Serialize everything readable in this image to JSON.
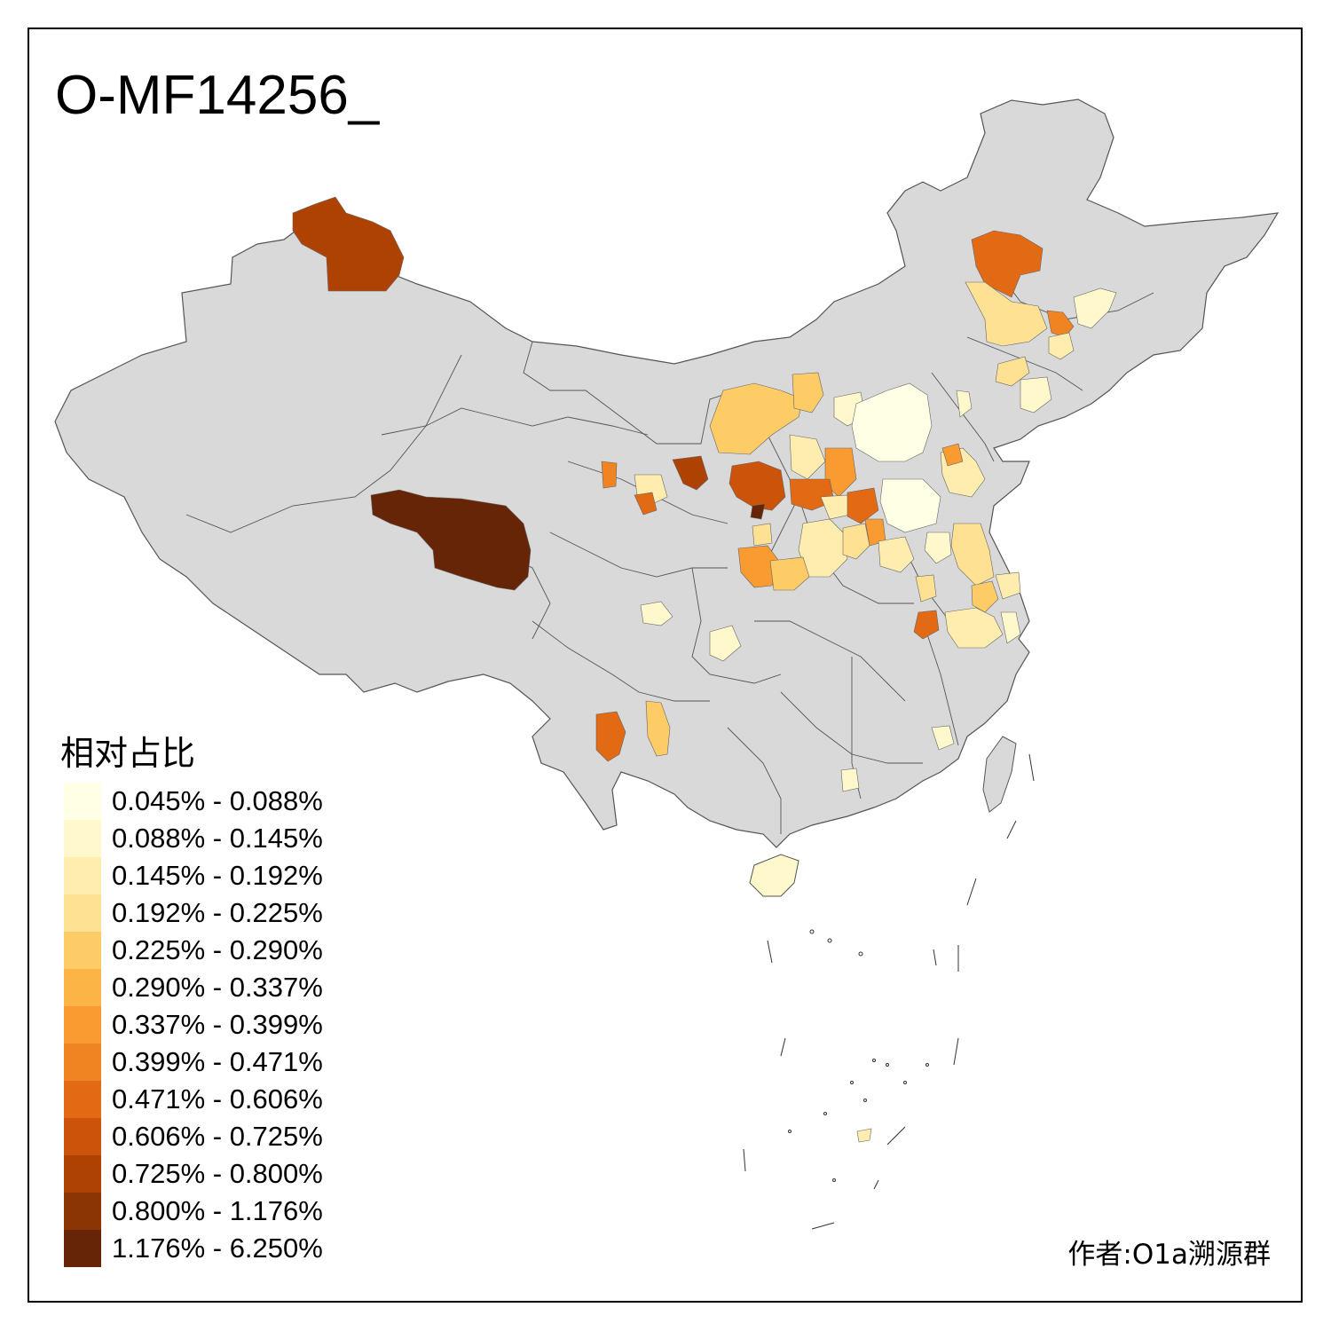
{
  "title": "O-MF14256_",
  "legend": {
    "title": "相对占比",
    "items": [
      {
        "label": "0.045% - 0.088%",
        "color": "#FFFFE5"
      },
      {
        "label": "0.088% - 0.145%",
        "color": "#FFF8CC"
      },
      {
        "label": "0.145% - 0.192%",
        "color": "#FEEDAE"
      },
      {
        "label": "0.192% - 0.225%",
        "color": "#FEE192"
      },
      {
        "label": "0.225% - 0.290%",
        "color": "#FECC66"
      },
      {
        "label": "0.290% - 0.337%",
        "color": "#FDB446"
      },
      {
        "label": "0.337% - 0.399%",
        "color": "#F99B30"
      },
      {
        "label": "0.399% - 0.471%",
        "color": "#F08322"
      },
      {
        "label": "0.471% - 0.606%",
        "color": "#E26A14"
      },
      {
        "label": "0.606% - 0.725%",
        "color": "#CC530A"
      },
      {
        "label": "0.725% - 0.800%",
        "color": "#AE4203"
      },
      {
        "label": "0.800% - 1.176%",
        "color": "#8B3404"
      },
      {
        "label": "1.176% - 6.250%",
        "color": "#662506"
      }
    ]
  },
  "author": "作者:O1a溯源群",
  "colors": {
    "land": "#D9D9D9",
    "border": "#555555",
    "frame": "#000000"
  }
}
